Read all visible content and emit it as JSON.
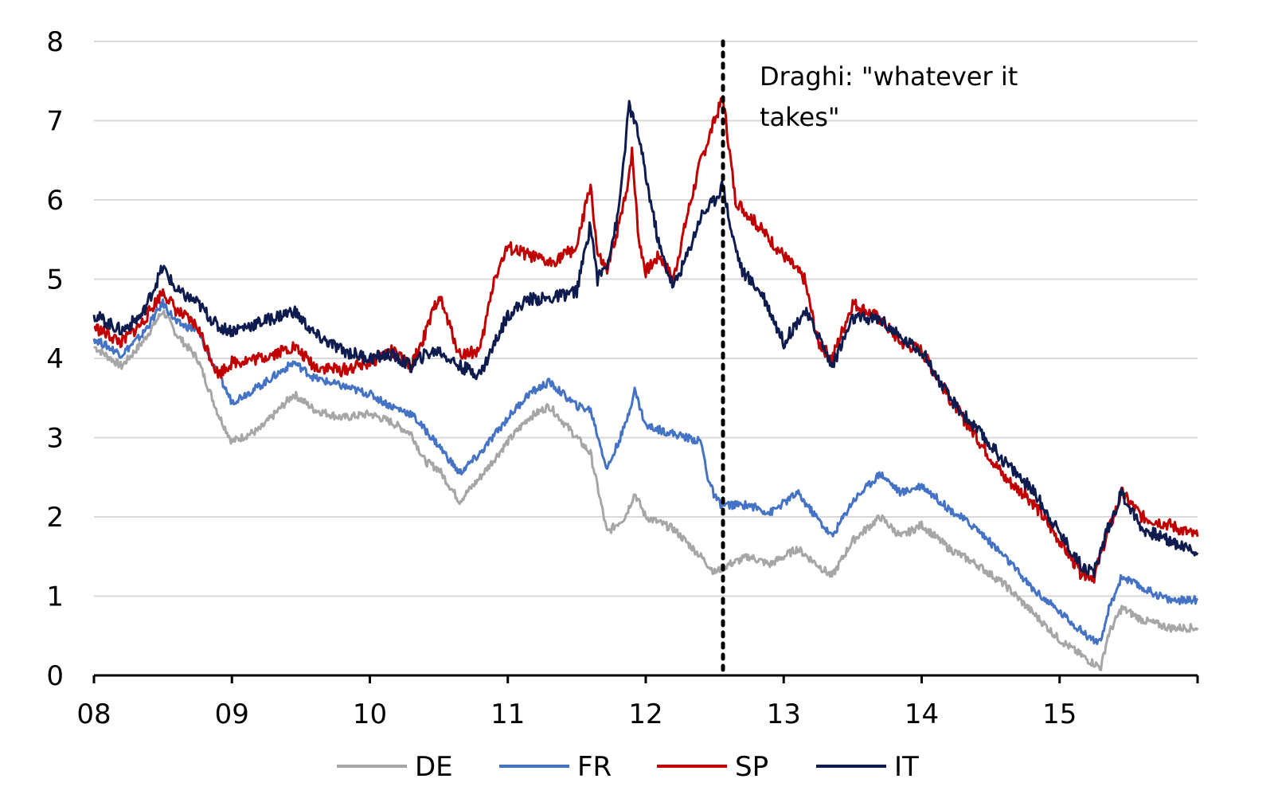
{
  "chart_data": {
    "type": "line",
    "title": "",
    "xlabel": "",
    "ylabel": "",
    "x_ticks": [
      "08",
      "09",
      "10",
      "11",
      "12",
      "13",
      "14",
      "15"
    ],
    "xlim": [
      2008,
      2016
    ],
    "ylim": [
      0,
      8
    ],
    "y_ticks": [
      0,
      1,
      2,
      3,
      4,
      5,
      6,
      7,
      8
    ],
    "grid": true,
    "legend_position": "bottom",
    "annotation": {
      "x": 2012.56,
      "lines": [
        "Draghi: \"whatever it",
        "takes\""
      ]
    },
    "series": [
      {
        "name": "DE",
        "color": "#a6a6a6",
        "points": [
          [
            2008.0,
            4.15
          ],
          [
            2008.2,
            3.9
          ],
          [
            2008.35,
            4.2
          ],
          [
            2008.5,
            4.6
          ],
          [
            2008.6,
            4.3
          ],
          [
            2008.75,
            4.0
          ],
          [
            2008.9,
            3.3
          ],
          [
            2009.0,
            2.95
          ],
          [
            2009.2,
            3.1
          ],
          [
            2009.45,
            3.55
          ],
          [
            2009.6,
            3.35
          ],
          [
            2009.8,
            3.25
          ],
          [
            2010.0,
            3.3
          ],
          [
            2010.15,
            3.2
          ],
          [
            2010.3,
            3.05
          ],
          [
            2010.4,
            2.7
          ],
          [
            2010.5,
            2.6
          ],
          [
            2010.65,
            2.2
          ],
          [
            2010.8,
            2.5
          ],
          [
            2011.0,
            2.95
          ],
          [
            2011.15,
            3.25
          ],
          [
            2011.3,
            3.4
          ],
          [
            2011.5,
            3.0
          ],
          [
            2011.6,
            2.8
          ],
          [
            2011.72,
            1.8
          ],
          [
            2011.85,
            2.0
          ],
          [
            2011.92,
            2.3
          ],
          [
            2012.0,
            2.0
          ],
          [
            2012.2,
            1.85
          ],
          [
            2012.4,
            1.5
          ],
          [
            2012.5,
            1.3
          ],
          [
            2012.6,
            1.4
          ],
          [
            2012.75,
            1.5
          ],
          [
            2012.9,
            1.4
          ],
          [
            2013.1,
            1.6
          ],
          [
            2013.35,
            1.25
          ],
          [
            2013.5,
            1.7
          ],
          [
            2013.7,
            2.0
          ],
          [
            2013.85,
            1.75
          ],
          [
            2014.0,
            1.9
          ],
          [
            2014.2,
            1.6
          ],
          [
            2014.4,
            1.4
          ],
          [
            2014.6,
            1.15
          ],
          [
            2014.8,
            0.8
          ],
          [
            2015.0,
            0.45
          ],
          [
            2015.2,
            0.2
          ],
          [
            2015.3,
            0.1
          ],
          [
            2015.35,
            0.5
          ],
          [
            2015.45,
            0.85
          ],
          [
            2015.6,
            0.7
          ],
          [
            2015.8,
            0.6
          ],
          [
            2016.0,
            0.6
          ]
        ]
      },
      {
        "name": "FR",
        "color": "#4472c4",
        "points": [
          [
            2008.0,
            4.25
          ],
          [
            2008.2,
            4.05
          ],
          [
            2008.35,
            4.3
          ],
          [
            2008.5,
            4.7
          ],
          [
            2008.6,
            4.45
          ],
          [
            2008.75,
            4.35
          ],
          [
            2008.9,
            3.8
          ],
          [
            2009.0,
            3.45
          ],
          [
            2009.2,
            3.65
          ],
          [
            2009.45,
            3.95
          ],
          [
            2009.6,
            3.75
          ],
          [
            2009.8,
            3.65
          ],
          [
            2010.0,
            3.55
          ],
          [
            2010.15,
            3.4
          ],
          [
            2010.3,
            3.3
          ],
          [
            2010.4,
            3.1
          ],
          [
            2010.5,
            2.9
          ],
          [
            2010.65,
            2.55
          ],
          [
            2010.8,
            2.8
          ],
          [
            2011.0,
            3.25
          ],
          [
            2011.15,
            3.55
          ],
          [
            2011.3,
            3.7
          ],
          [
            2011.5,
            3.4
          ],
          [
            2011.6,
            3.35
          ],
          [
            2011.72,
            2.6
          ],
          [
            2011.85,
            3.15
          ],
          [
            2011.92,
            3.6
          ],
          [
            2012.0,
            3.15
          ],
          [
            2012.2,
            3.05
          ],
          [
            2012.4,
            2.95
          ],
          [
            2012.45,
            2.5
          ],
          [
            2012.5,
            2.25
          ],
          [
            2012.55,
            2.15
          ],
          [
            2012.6,
            2.15
          ],
          [
            2012.75,
            2.15
          ],
          [
            2012.9,
            2.05
          ],
          [
            2013.1,
            2.3
          ],
          [
            2013.35,
            1.75
          ],
          [
            2013.5,
            2.2
          ],
          [
            2013.7,
            2.55
          ],
          [
            2013.85,
            2.3
          ],
          [
            2014.0,
            2.4
          ],
          [
            2014.2,
            2.1
          ],
          [
            2014.4,
            1.85
          ],
          [
            2014.6,
            1.5
          ],
          [
            2014.8,
            1.1
          ],
          [
            2015.0,
            0.8
          ],
          [
            2015.2,
            0.5
          ],
          [
            2015.3,
            0.4
          ],
          [
            2015.35,
            0.8
          ],
          [
            2015.45,
            1.25
          ],
          [
            2015.6,
            1.1
          ],
          [
            2015.8,
            0.95
          ],
          [
            2016.0,
            0.95
          ]
        ]
      },
      {
        "name": "SP",
        "color": "#c00000",
        "points": [
          [
            2008.0,
            4.4
          ],
          [
            2008.2,
            4.2
          ],
          [
            2008.35,
            4.45
          ],
          [
            2008.5,
            4.85
          ],
          [
            2008.6,
            4.6
          ],
          [
            2008.75,
            4.4
          ],
          [
            2008.9,
            3.8
          ],
          [
            2009.0,
            3.95
          ],
          [
            2009.2,
            4.0
          ],
          [
            2009.45,
            4.15
          ],
          [
            2009.6,
            3.9
          ],
          [
            2009.8,
            3.85
          ],
          [
            2010.0,
            3.95
          ],
          [
            2010.15,
            4.1
          ],
          [
            2010.3,
            3.9
          ],
          [
            2010.4,
            4.3
          ],
          [
            2010.5,
            4.8
          ],
          [
            2010.65,
            4.05
          ],
          [
            2010.8,
            4.1
          ],
          [
            2010.9,
            5.0
          ],
          [
            2011.0,
            5.4
          ],
          [
            2011.15,
            5.3
          ],
          [
            2011.3,
            5.2
          ],
          [
            2011.5,
            5.4
          ],
          [
            2011.6,
            6.2
          ],
          [
            2011.65,
            5.3
          ],
          [
            2011.72,
            5.1
          ],
          [
            2011.85,
            6.0
          ],
          [
            2011.9,
            6.6
          ],
          [
            2011.95,
            5.5
          ],
          [
            2012.0,
            5.1
          ],
          [
            2012.1,
            5.3
          ],
          [
            2012.2,
            5.0
          ],
          [
            2012.3,
            5.8
          ],
          [
            2012.4,
            6.5
          ],
          [
            2012.5,
            7.0
          ],
          [
            2012.56,
            7.3
          ],
          [
            2012.65,
            6.0
          ],
          [
            2012.75,
            5.8
          ],
          [
            2012.9,
            5.5
          ],
          [
            2013.0,
            5.3
          ],
          [
            2013.15,
            5.0
          ],
          [
            2013.25,
            4.2
          ],
          [
            2013.35,
            4.0
          ],
          [
            2013.5,
            4.7
          ],
          [
            2013.7,
            4.5
          ],
          [
            2013.85,
            4.2
          ],
          [
            2014.0,
            4.1
          ],
          [
            2014.2,
            3.5
          ],
          [
            2014.4,
            3.0
          ],
          [
            2014.6,
            2.5
          ],
          [
            2014.8,
            2.2
          ],
          [
            2015.0,
            1.7
          ],
          [
            2015.15,
            1.3
          ],
          [
            2015.25,
            1.25
          ],
          [
            2015.35,
            1.8
          ],
          [
            2015.45,
            2.3
          ],
          [
            2015.6,
            2.0
          ],
          [
            2015.8,
            1.9
          ],
          [
            2016.0,
            1.75
          ]
        ]
      },
      {
        "name": "IT",
        "color": "#0d1b4f",
        "points": [
          [
            2008.0,
            4.55
          ],
          [
            2008.2,
            4.35
          ],
          [
            2008.35,
            4.55
          ],
          [
            2008.5,
            5.15
          ],
          [
            2008.6,
            4.85
          ],
          [
            2008.75,
            4.7
          ],
          [
            2008.9,
            4.4
          ],
          [
            2009.0,
            4.35
          ],
          [
            2009.2,
            4.45
          ],
          [
            2009.45,
            4.6
          ],
          [
            2009.6,
            4.3
          ],
          [
            2009.8,
            4.1
          ],
          [
            2010.0,
            4.0
          ],
          [
            2010.15,
            4.05
          ],
          [
            2010.3,
            3.9
          ],
          [
            2010.4,
            4.05
          ],
          [
            2010.5,
            4.1
          ],
          [
            2010.65,
            3.9
          ],
          [
            2010.8,
            3.8
          ],
          [
            2011.0,
            4.55
          ],
          [
            2011.15,
            4.75
          ],
          [
            2011.3,
            4.75
          ],
          [
            2011.5,
            4.85
          ],
          [
            2011.6,
            5.7
          ],
          [
            2011.65,
            5.0
          ],
          [
            2011.72,
            5.2
          ],
          [
            2011.8,
            5.8
          ],
          [
            2011.88,
            7.2
          ],
          [
            2011.95,
            6.8
          ],
          [
            2012.0,
            6.3
          ],
          [
            2012.1,
            5.4
          ],
          [
            2012.2,
            4.9
          ],
          [
            2012.3,
            5.3
          ],
          [
            2012.4,
            5.8
          ],
          [
            2012.5,
            6.0
          ],
          [
            2012.56,
            6.2
          ],
          [
            2012.62,
            5.6
          ],
          [
            2012.7,
            5.1
          ],
          [
            2012.85,
            4.8
          ],
          [
            2013.0,
            4.2
          ],
          [
            2013.15,
            4.6
          ],
          [
            2013.25,
            4.3
          ],
          [
            2013.35,
            3.9
          ],
          [
            2013.5,
            4.5
          ],
          [
            2013.7,
            4.5
          ],
          [
            2013.85,
            4.25
          ],
          [
            2014.0,
            4.1
          ],
          [
            2014.2,
            3.5
          ],
          [
            2014.4,
            3.1
          ],
          [
            2014.6,
            2.7
          ],
          [
            2014.8,
            2.35
          ],
          [
            2015.0,
            1.8
          ],
          [
            2015.15,
            1.4
          ],
          [
            2015.25,
            1.3
          ],
          [
            2015.35,
            1.85
          ],
          [
            2015.45,
            2.3
          ],
          [
            2015.6,
            1.85
          ],
          [
            2015.8,
            1.7
          ],
          [
            2016.0,
            1.55
          ]
        ]
      }
    ]
  }
}
